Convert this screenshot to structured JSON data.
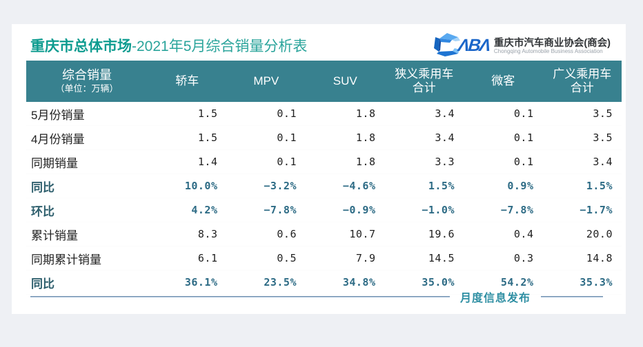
{
  "page": {
    "title_emphasis": "重庆市总体市场",
    "title_rest": "-2021年5月综合销量分析表"
  },
  "logo": {
    "letters": "ΛBΛ",
    "org_cn": "重庆市汽车商业协会(商会)",
    "org_en": "Chongqing Automobile Business Association"
  },
  "table": {
    "header": {
      "col0_line1": "综合销量",
      "col0_line2": "（单位：万辆）",
      "columns": [
        {
          "line1": "轿车",
          "line2": ""
        },
        {
          "line1": "MPV",
          "line2": ""
        },
        {
          "line1": "SUV",
          "line2": ""
        },
        {
          "line1": "狭义乘用车",
          "line2": "合计"
        },
        {
          "line1": "微客",
          "line2": ""
        },
        {
          "line1": "广义乘用车",
          "line2": "合计"
        }
      ]
    },
    "rows": [
      {
        "label": "5月份销量",
        "style": "normal",
        "values": [
          "1.5",
          "0.1",
          "1.8",
          "3.4",
          "0.1",
          "3.5"
        ]
      },
      {
        "label": "4月份销量",
        "style": "normal",
        "values": [
          "1.5",
          "0.1",
          "1.8",
          "3.4",
          "0.1",
          "3.5"
        ]
      },
      {
        "label": "同期销量",
        "style": "normal",
        "values": [
          "1.4",
          "0.1",
          "1.8",
          "3.3",
          "0.1",
          "3.4"
        ]
      },
      {
        "label": "同比",
        "style": "pct",
        "values": [
          "10.0%",
          "−3.2%",
          "−4.6%",
          "1.5%",
          "0.9%",
          "1.5%"
        ]
      },
      {
        "label": "环比",
        "style": "pct",
        "values": [
          "4.2%",
          "−7.8%",
          "−0.9%",
          "−1.0%",
          "−7.8%",
          "−1.7%"
        ]
      },
      {
        "label": "累计销量",
        "style": "normal",
        "values": [
          "8.3",
          "0.6",
          "10.7",
          "19.6",
          "0.4",
          "20.0"
        ]
      },
      {
        "label": "同期累计销量",
        "style": "normal",
        "values": [
          "6.1",
          "0.5",
          "7.9",
          "14.5",
          "0.3",
          "14.8"
        ]
      },
      {
        "label": "同比",
        "style": "pct",
        "values": [
          "36.1%",
          "23.5%",
          "34.8%",
          "35.0%",
          "54.2%",
          "35.3%"
        ]
      }
    ]
  },
  "footer": {
    "label": "月度信息发布"
  },
  "colors": {
    "title_emphasis": "#0e9c90",
    "title_rest": "#2aa49b",
    "header_band": "#38818f",
    "pct_label": "#2e5f6d",
    "pct_value": "#2d6b85",
    "footer_text": "#2f8fa3",
    "logo_blue": "#1b66c9"
  },
  "chart_data": {
    "type": "table",
    "title": "重庆市总体市场-2021年5月综合销量分析表",
    "unit": "万辆",
    "categories": [
      "轿车",
      "MPV",
      "SUV",
      "狭义乘用车合计",
      "微客",
      "广义乘用车合计"
    ],
    "series": [
      {
        "name": "5月份销量",
        "values": [
          1.5,
          0.1,
          1.8,
          3.4,
          0.1,
          3.5
        ]
      },
      {
        "name": "4月份销量",
        "values": [
          1.5,
          0.1,
          1.8,
          3.4,
          0.1,
          3.5
        ]
      },
      {
        "name": "同期销量",
        "values": [
          1.4,
          0.1,
          1.8,
          3.3,
          0.1,
          3.4
        ]
      },
      {
        "name": "同比",
        "values": [
          "10.0%",
          "-3.2%",
          "-4.6%",
          "1.5%",
          "0.9%",
          "1.5%"
        ]
      },
      {
        "name": "环比",
        "values": [
          "4.2%",
          "-7.8%",
          "-0.9%",
          "-1.0%",
          "-7.8%",
          "-1.7%"
        ]
      },
      {
        "name": "累计销量",
        "values": [
          8.3,
          0.6,
          10.7,
          19.6,
          0.4,
          20.0
        ]
      },
      {
        "name": "同期累计销量",
        "values": [
          6.1,
          0.5,
          7.9,
          14.5,
          0.3,
          14.8
        ]
      },
      {
        "name": "同比(累计)",
        "values": [
          "36.1%",
          "23.5%",
          "34.8%",
          "35.0%",
          "54.2%",
          "35.3%"
        ]
      }
    ]
  }
}
